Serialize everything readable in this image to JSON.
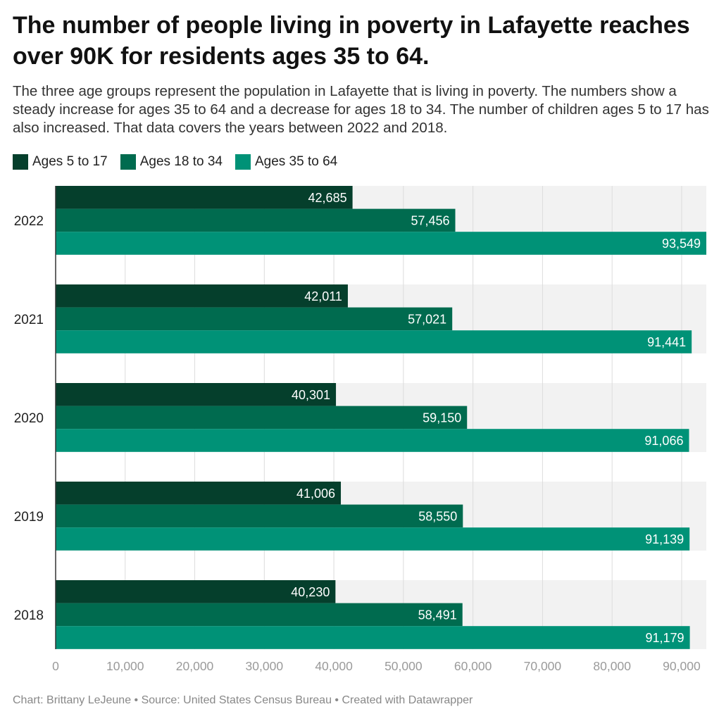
{
  "title": "The number of people living in poverty in Lafayette reaches over 90K for residents ages 35 to 64.",
  "subtitle": "The three age groups represent the population in Lafayette that is living in poverty. The numbers show a steady increase for ages 35 to 64 and a decrease for ages 18 to 34. The number of children ages 5 to 17 has also increased. That data covers the years between 2022 and 2018.",
  "footer": "Chart: Brittany LeJeune • Source: United States Census Bureau • Created with Datawrapper",
  "chart_data": {
    "type": "bar",
    "orientation": "horizontal",
    "categories": [
      "2022",
      "2021",
      "2020",
      "2019",
      "2018"
    ],
    "series": [
      {
        "name": "Ages 5 to 17",
        "color": "#053f2c",
        "values": [
          42685,
          42011,
          40301,
          41006,
          40230
        ],
        "labels": [
          "42,685",
          "42,011",
          "40,301",
          "41,006",
          "40,230"
        ]
      },
      {
        "name": "Ages 18 to 34",
        "color": "#006b4f",
        "values": [
          57456,
          57021,
          59150,
          58550,
          58491
        ],
        "labels": [
          "57,456",
          "57,021",
          "59,150",
          "58,550",
          "58,491"
        ]
      },
      {
        "name": "Ages 35 to 64",
        "color": "#009277",
        "values": [
          93549,
          91441,
          91066,
          91139,
          91179
        ],
        "labels": [
          "93,549",
          "91,441",
          "91,066",
          "91,139",
          "91,179"
        ]
      }
    ],
    "xlim": [
      0,
      93549
    ],
    "x_ticks": [
      0,
      10000,
      20000,
      30000,
      40000,
      50000,
      60000,
      70000,
      80000,
      90000
    ],
    "x_tick_labels": [
      "0",
      "10,000",
      "20,000",
      "30,000",
      "40,000",
      "50,000",
      "60,000",
      "70,000",
      "80,000",
      "90,000"
    ],
    "grid": true,
    "legend": "top-left"
  }
}
